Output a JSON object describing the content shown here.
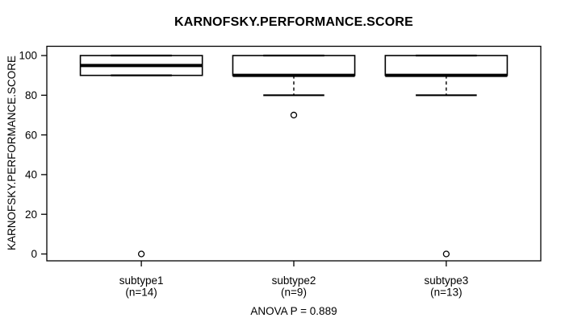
{
  "colors": {
    "foreground": "#000000",
    "background": "#ffffff"
  },
  "chart_data": {
    "type": "boxplot",
    "title": "KARNOFSKY.PERFORMANCE.SCORE",
    "ylabel": "KARNOFSKY.PERFORMANCE.SCORE",
    "xlabel": "",
    "annotation": "ANOVA P = 0.889",
    "ylim": [
      0,
      100
    ],
    "yticks": [
      0,
      20,
      40,
      60,
      80,
      100
    ],
    "grid": false,
    "legend": null,
    "groups": [
      {
        "label": "subtype1",
        "sublabel": "(n=14)",
        "n": 14,
        "whisker_low": 90,
        "q1": 90,
        "median": 95,
        "q3": 100,
        "whisker_high": 100,
        "outliers": [
          0
        ]
      },
      {
        "label": "subtype2",
        "sublabel": "(n=9)",
        "n": 9,
        "whisker_low": 80,
        "q1": 90,
        "median": 90,
        "q3": 100,
        "whisker_high": 100,
        "outliers": [
          70
        ]
      },
      {
        "label": "subtype3",
        "sublabel": "(n=13)",
        "n": 13,
        "whisker_low": 80,
        "q1": 90,
        "median": 90,
        "q3": 100,
        "whisker_high": 100,
        "outliers": [
          0
        ]
      }
    ]
  }
}
